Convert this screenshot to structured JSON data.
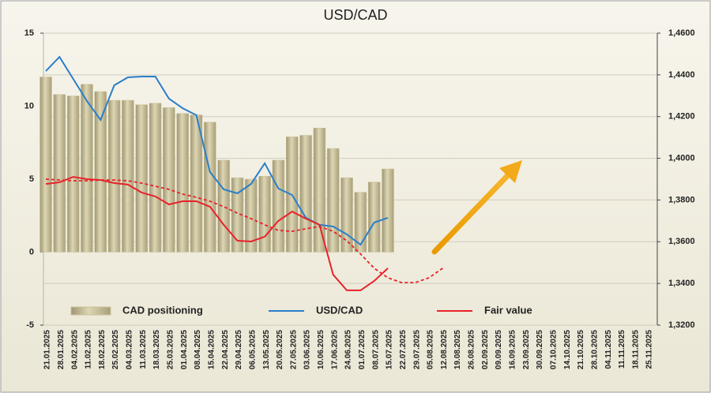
{
  "chart_data": {
    "type": "bar",
    "title": "USD/CAD",
    "categories": [
      "21.01.2025",
      "28.01.2025",
      "04.02.2025",
      "11.02.2025",
      "18.02.2025",
      "25.02.2025",
      "04.03.2025",
      "11.03.2025",
      "18.03.2025",
      "25.03.2025",
      "01.04.2025",
      "08.04.2025",
      "15.04.2025",
      "22.04.2025",
      "29.04.2025",
      "06.05.2025",
      "13.05.2025",
      "20.05.2025",
      "27.05.2025",
      "03.06.2025",
      "10.06.2025",
      "17.06.2025",
      "24.06.2025",
      "01.07.2025",
      "08.07.2025",
      "15.07.2025",
      "22.07.2025",
      "29.07.2025",
      "05.08.2025",
      "12.08.2025",
      "19.08.2025",
      "26.08.2025",
      "02.09.2025",
      "09.09.2025",
      "16.09.2025",
      "23.09.2025",
      "30.09.2025",
      "07.10.2025",
      "14.10.2025",
      "21.10.2025",
      "28.10.2025",
      "04.11.2025",
      "11.11.2025",
      "18.11.2025",
      "25.11.2025"
    ],
    "series": [
      {
        "name": "CAD positioning",
        "type": "bar",
        "color": "#c9c19a",
        "values": [
          12.0,
          10.8,
          10.7,
          11.5,
          11.0,
          10.4,
          10.4,
          10.1,
          10.2,
          9.9,
          9.5,
          9.4,
          8.9,
          6.3,
          5.1,
          5.0,
          5.2,
          6.3,
          7.9,
          8.0,
          8.5,
          7.1,
          5.1,
          4.1,
          4.8,
          5.7,
          null,
          null,
          null,
          null,
          null,
          null,
          null,
          null,
          null,
          null,
          null,
          null,
          null,
          null,
          null,
          null,
          null,
          null,
          null
        ]
      },
      {
        "name": "USD/CAD",
        "type": "line",
        "axis": "y2",
        "color": "#2a7fc9",
        "values": [
          1.4418,
          1.4486,
          1.4381,
          1.4275,
          1.4184,
          1.435,
          1.4388,
          1.4392,
          1.4392,
          1.4286,
          1.424,
          1.4207,
          1.3934,
          1.3851,
          1.3832,
          1.3877,
          1.3976,
          1.3855,
          1.3824,
          1.3715,
          1.3681,
          1.3673,
          1.3635,
          1.3586,
          1.3692,
          1.3715,
          null,
          null,
          null,
          null,
          null,
          null,
          null,
          null,
          null,
          null,
          null,
          null,
          null,
          null,
          null,
          null,
          null,
          null,
          null
        ]
      },
      {
        "name": "Fair value",
        "type": "line",
        "axis": "y2",
        "color": "#e8222a",
        "values": [
          1.3877,
          1.3885,
          1.3911,
          1.39,
          1.3896,
          1.3881,
          1.3874,
          1.3836,
          1.3817,
          1.3779,
          1.3794,
          1.3794,
          1.3768,
          1.3681,
          1.3605,
          1.3601,
          1.3624,
          1.37,
          1.3745,
          1.3711,
          1.3681,
          1.3442,
          1.3367,
          1.3367,
          1.3412,
          1.3473,
          null,
          null,
          null,
          null,
          null,
          null,
          null,
          null,
          null,
          null,
          null,
          null,
          null,
          null,
          null,
          null,
          null,
          null,
          null
        ]
      },
      {
        "type": "line",
        "axis": "y2",
        "color": "#e8222a",
        "dashed": true,
        "values": [
          1.39,
          1.3896,
          1.3892,
          1.3892,
          1.3896,
          1.3896,
          1.3892,
          1.3881,
          1.3866,
          1.3851,
          1.3828,
          1.3813,
          1.3794,
          1.3768,
          1.3737,
          1.3711,
          1.3681,
          1.3654,
          1.365,
          1.3662,
          1.3673,
          1.365,
          1.3605,
          1.3541,
          1.3473,
          1.3427,
          1.3404,
          1.3404,
          1.3427,
          1.3473,
          null,
          null,
          null,
          null,
          null,
          null,
          null,
          null,
          null,
          null,
          null,
          null,
          null,
          null,
          null
        ]
      }
    ],
    "ylim": [
      -5,
      15
    ],
    "yticks": [
      -5,
      0,
      5,
      10,
      15
    ],
    "y2lim": [
      1.32,
      1.46
    ],
    "y2ticks": [
      {
        "value": 1.32,
        "label": "1,3200"
      },
      {
        "value": 1.34,
        "label": "1,3400"
      },
      {
        "value": 1.36,
        "label": "1,3600"
      },
      {
        "value": 1.38,
        "label": "1,3800"
      },
      {
        "value": 1.4,
        "label": "1,4000"
      },
      {
        "value": 1.42,
        "label": "1,4200"
      },
      {
        "value": 1.44,
        "label": "1,4400"
      },
      {
        "value": 1.46,
        "label": "1,4600"
      }
    ],
    "grid": true
  }
}
